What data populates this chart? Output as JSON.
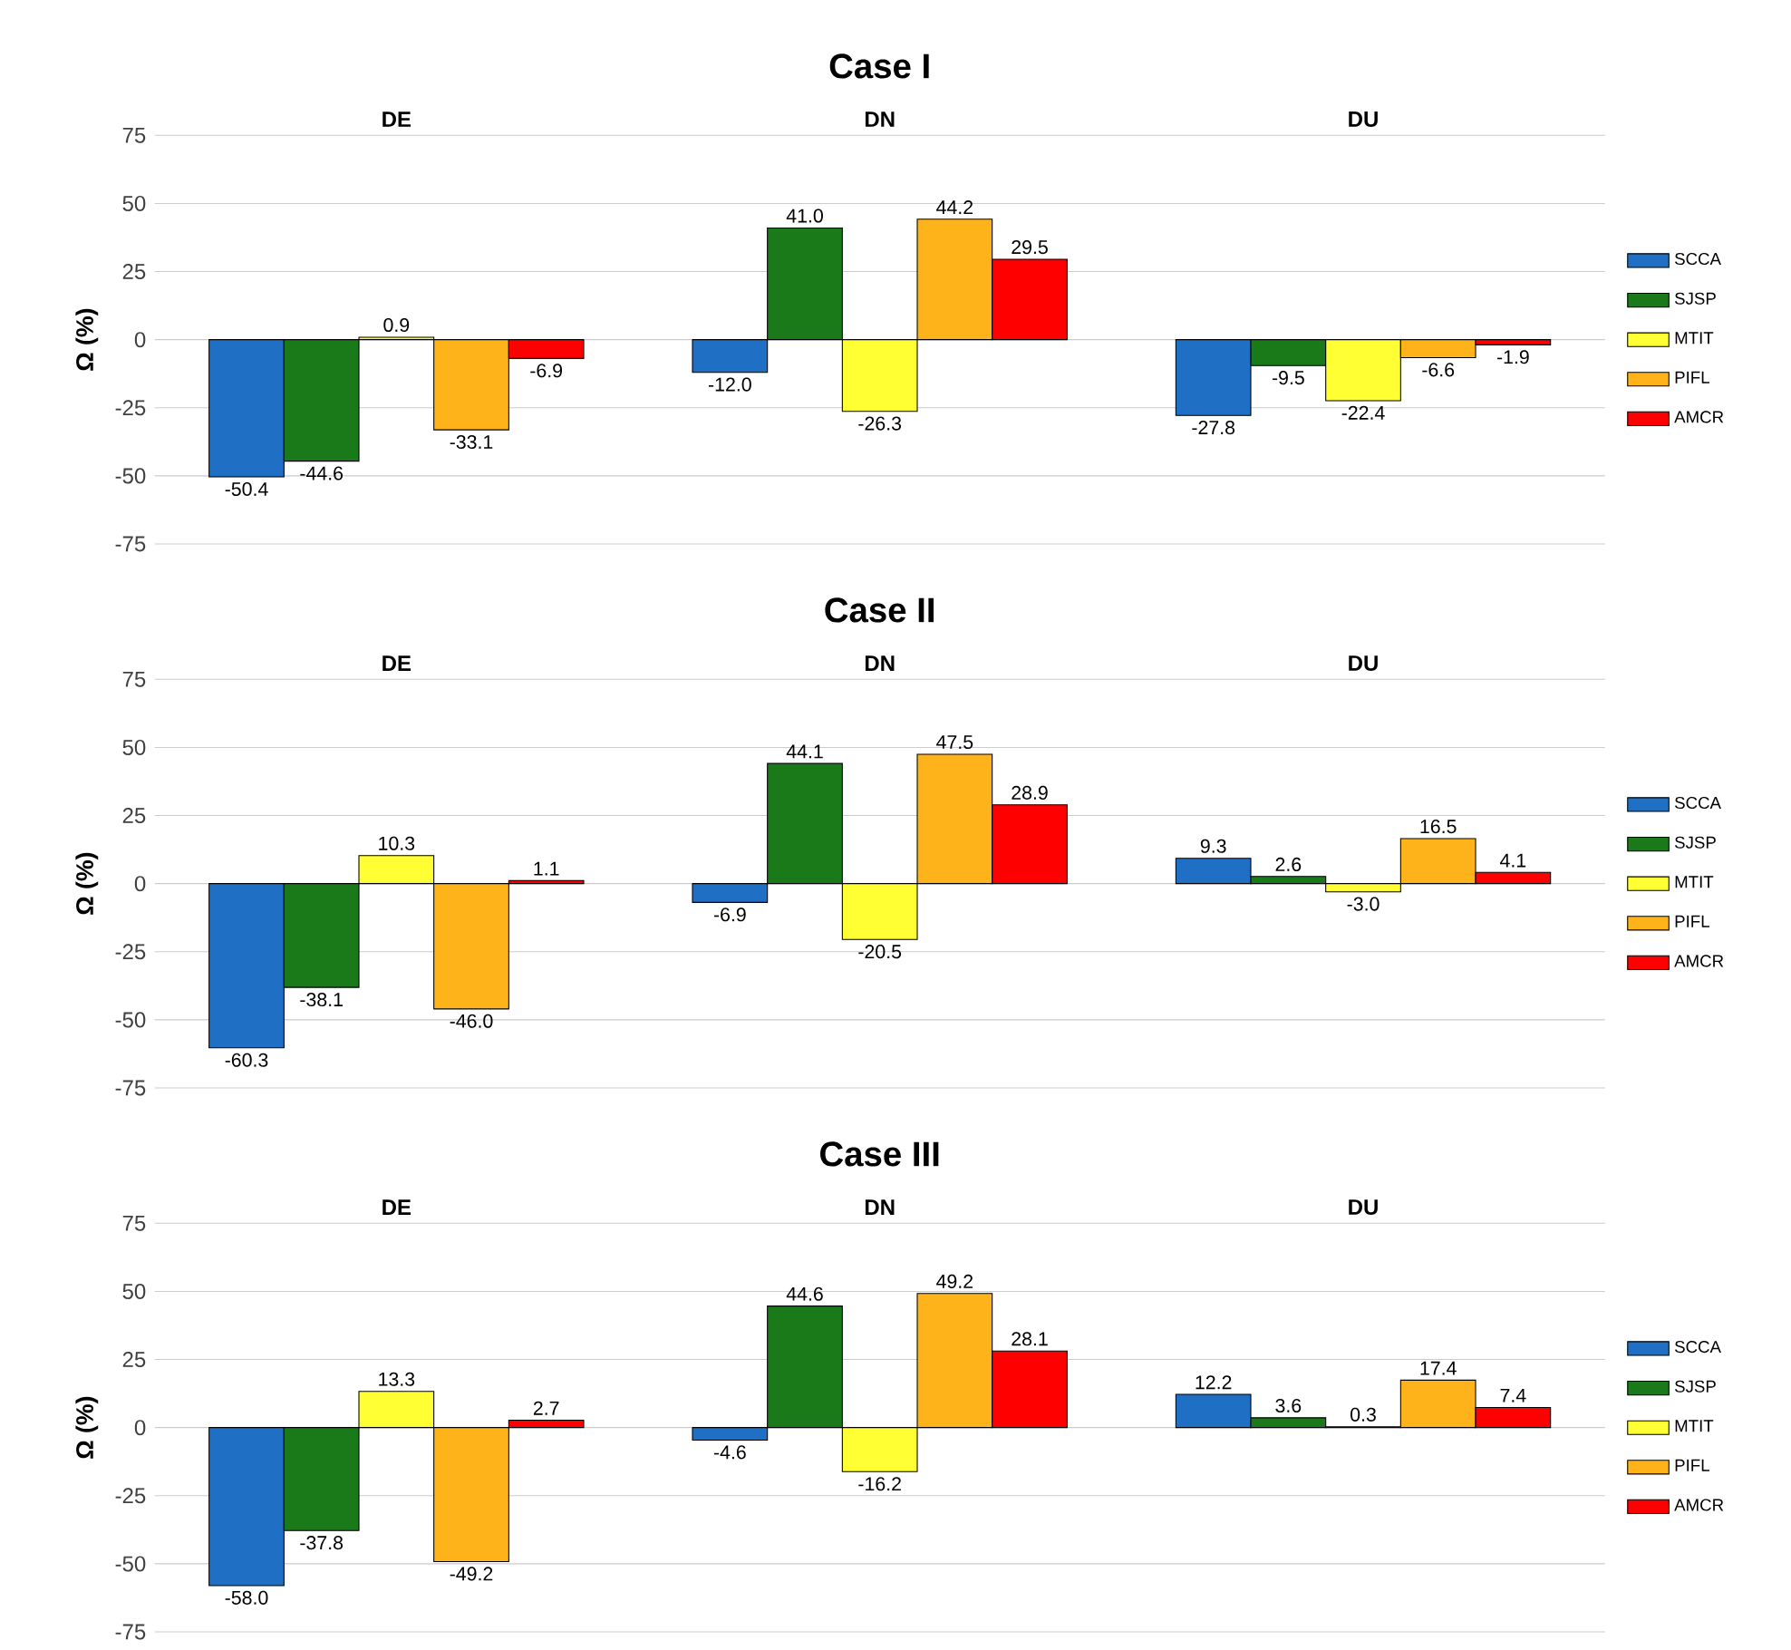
{
  "chart_data": [
    {
      "type": "bar",
      "title": "Case I",
      "ylabel": "Ω (%)",
      "categories": [
        "DE",
        "DN",
        "DU"
      ],
      "ylim": [
        -75,
        75
      ],
      "yticks": [
        -75,
        -50,
        -25,
        0,
        25,
        50,
        75
      ],
      "grid": "y",
      "legend": "right",
      "series": [
        {
          "name": "SCCA",
          "color": "#1f6fc5",
          "values": [
            -50.4,
            -12.0,
            -27.8
          ],
          "value_labels": [
            "-50.4",
            "-12.0",
            "-27.8"
          ]
        },
        {
          "name": "SJSP",
          "color": "#1a7a1a",
          "values": [
            -44.6,
            41.0,
            -9.5
          ],
          "value_labels": [
            "-44.6",
            "41.0",
            "-9.5"
          ]
        },
        {
          "name": "MTIT",
          "color": "#ffff33",
          "values": [
            0.9,
            -26.3,
            -22.4
          ],
          "value_labels": [
            "0.9",
            "-26.3",
            "-22.4"
          ]
        },
        {
          "name": "PIFL",
          "color": "#ffb31a",
          "values": [
            -33.1,
            44.2,
            -6.6
          ],
          "value_labels": [
            "-33.1",
            "44.2",
            "-6.6"
          ]
        },
        {
          "name": "AMCR",
          "color": "#ff0000",
          "values": [
            -6.9,
            29.5,
            -1.9
          ],
          "value_labels": [
            "-6.9",
            "29.5",
            "-1.9"
          ]
        }
      ]
    },
    {
      "type": "bar",
      "title": "Case II",
      "ylabel": "Ω (%)",
      "categories": [
        "DE",
        "DN",
        "DU"
      ],
      "ylim": [
        -75,
        75
      ],
      "yticks": [
        -75,
        -50,
        -25,
        0,
        25,
        50,
        75
      ],
      "grid": "y",
      "legend": "right",
      "series": [
        {
          "name": "SCCA",
          "color": "#1f6fc5",
          "values": [
            -60.3,
            -6.9,
            9.3
          ],
          "value_labels": [
            "-60.3",
            "-6.9",
            "9.3"
          ]
        },
        {
          "name": "SJSP",
          "color": "#1a7a1a",
          "values": [
            -38.1,
            44.1,
            2.6
          ],
          "value_labels": [
            "-38.1",
            "44.1",
            "2.6"
          ]
        },
        {
          "name": "MTIT",
          "color": "#ffff33",
          "values": [
            10.3,
            -20.5,
            -3.0
          ],
          "value_labels": [
            "10.3",
            "-20.5",
            "-3.0"
          ]
        },
        {
          "name": "PIFL",
          "color": "#ffb31a",
          "values": [
            -46.0,
            47.5,
            16.5
          ],
          "value_labels": [
            "-46.0",
            "47.5",
            "16.5"
          ]
        },
        {
          "name": "AMCR",
          "color": "#ff0000",
          "values": [
            1.1,
            28.9,
            4.1
          ],
          "value_labels": [
            "1.1",
            "28.9",
            "4.1"
          ]
        }
      ]
    },
    {
      "type": "bar",
      "title": "Case III",
      "ylabel": "Ω (%)",
      "categories": [
        "DE",
        "DN",
        "DU"
      ],
      "ylim": [
        -75,
        75
      ],
      "yticks": [
        -75,
        -50,
        -25,
        0,
        25,
        50,
        75
      ],
      "grid": "y",
      "legend": "right",
      "series": [
        {
          "name": "SCCA",
          "color": "#1f6fc5",
          "values": [
            -58.0,
            -4.6,
            12.2
          ],
          "value_labels": [
            "-58.0",
            "-4.6",
            "12.2"
          ]
        },
        {
          "name": "SJSP",
          "color": "#1a7a1a",
          "values": [
            -37.8,
            44.6,
            3.6
          ],
          "value_labels": [
            "-37.8",
            "44.6",
            "3.6"
          ]
        },
        {
          "name": "MTIT",
          "color": "#ffff33",
          "values": [
            13.3,
            -16.2,
            0.3
          ],
          "value_labels": [
            "13.3",
            "-16.2",
            "0.3"
          ]
        },
        {
          "name": "PIFL",
          "color": "#ffb31a",
          "values": [
            -49.2,
            49.2,
            17.4
          ],
          "value_labels": [
            "-49.2",
            "49.2",
            "17.4"
          ]
        },
        {
          "name": "AMCR",
          "color": "#ff0000",
          "values": [
            2.7,
            28.1,
            7.4
          ],
          "value_labels": [
            "2.7",
            "28.1",
            "7.4"
          ]
        }
      ]
    }
  ]
}
